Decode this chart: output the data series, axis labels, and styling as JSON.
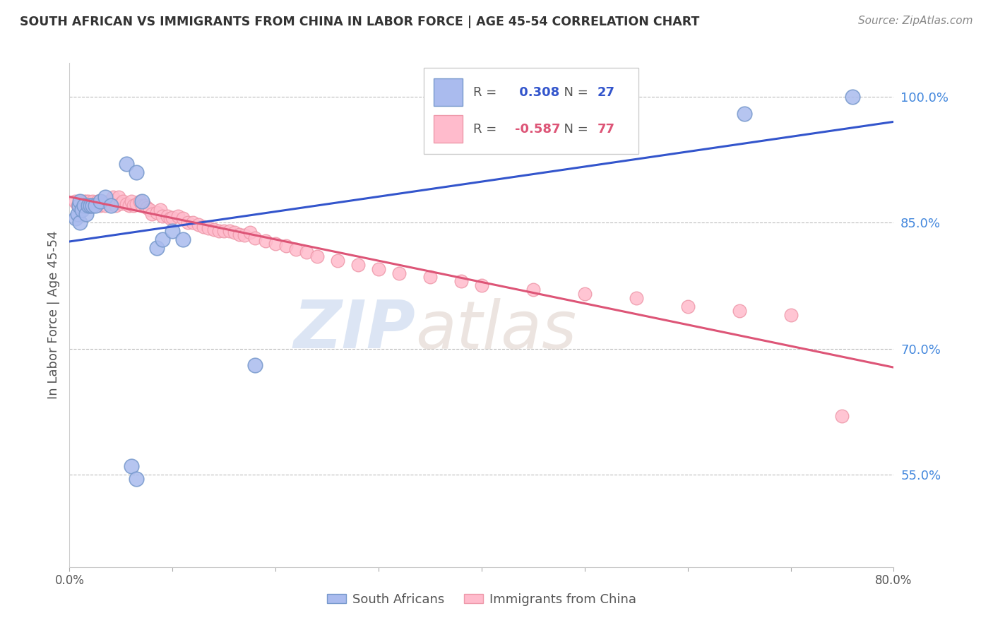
{
  "title": "SOUTH AFRICAN VS IMMIGRANTS FROM CHINA IN LABOR FORCE | AGE 45-54 CORRELATION CHART",
  "source": "Source: ZipAtlas.com",
  "ylabel": "In Labor Force | Age 45-54",
  "xlim": [
    0.0,
    0.8
  ],
  "ylim": [
    0.44,
    1.04
  ],
  "xticks": [
    0.0,
    0.1,
    0.2,
    0.3,
    0.4,
    0.5,
    0.6,
    0.7,
    0.8
  ],
  "xticklabels": [
    "0.0%",
    "",
    "",
    "",
    "",
    "",
    "",
    "",
    "80.0%"
  ],
  "yticks_right": [
    0.55,
    0.7,
    0.85,
    1.0
  ],
  "ytick_labels_right": [
    "55.0%",
    "70.0%",
    "85.0%",
    "100.0%"
  ],
  "blue_R": 0.308,
  "blue_N": 27,
  "pink_R": -0.587,
  "pink_N": 77,
  "blue_color": "#aabbee",
  "blue_edge": "#7799cc",
  "pink_color": "#ffbbcc",
  "pink_edge": "#ee99aa",
  "blue_line_color": "#3355cc",
  "pink_line_color": "#dd5577",
  "legend_label_blue": "South Africans",
  "legend_label_pink": "Immigrants from China",
  "watermark_zip": "ZIP",
  "watermark_atlas": "atlas",
  "blue_x": [
    0.006,
    0.008,
    0.009,
    0.01,
    0.01,
    0.012,
    0.014,
    0.016,
    0.018,
    0.02,
    0.022,
    0.025,
    0.03,
    0.035,
    0.04,
    0.055,
    0.065,
    0.07,
    0.085,
    0.09,
    0.1,
    0.11,
    0.06,
    0.065,
    0.18,
    0.655,
    0.76
  ],
  "blue_y": [
    0.855,
    0.86,
    0.87,
    0.85,
    0.875,
    0.865,
    0.87,
    0.86,
    0.87,
    0.87,
    0.87,
    0.87,
    0.875,
    0.88,
    0.87,
    0.92,
    0.91,
    0.875,
    0.82,
    0.83,
    0.84,
    0.83,
    0.56,
    0.545,
    0.68,
    0.98,
    1.0
  ],
  "pink_x": [
    0.005,
    0.008,
    0.01,
    0.012,
    0.014,
    0.015,
    0.016,
    0.018,
    0.02,
    0.022,
    0.024,
    0.025,
    0.027,
    0.03,
    0.03,
    0.032,
    0.035,
    0.038,
    0.04,
    0.042,
    0.045,
    0.048,
    0.05,
    0.052,
    0.055,
    0.058,
    0.06,
    0.062,
    0.065,
    0.068,
    0.07,
    0.073,
    0.075,
    0.078,
    0.08,
    0.085,
    0.088,
    0.09,
    0.095,
    0.098,
    0.1,
    0.105,
    0.11,
    0.115,
    0.12,
    0.125,
    0.13,
    0.135,
    0.14,
    0.145,
    0.15,
    0.155,
    0.16,
    0.165,
    0.17,
    0.175,
    0.18,
    0.19,
    0.2,
    0.21,
    0.22,
    0.23,
    0.24,
    0.26,
    0.28,
    0.3,
    0.32,
    0.35,
    0.38,
    0.4,
    0.45,
    0.5,
    0.55,
    0.6,
    0.65,
    0.7,
    0.75
  ],
  "pink_y": [
    0.875,
    0.87,
    0.875,
    0.87,
    0.875,
    0.87,
    0.875,
    0.875,
    0.87,
    0.875,
    0.87,
    0.872,
    0.875,
    0.872,
    0.87,
    0.875,
    0.87,
    0.875,
    0.872,
    0.88,
    0.87,
    0.88,
    0.873,
    0.875,
    0.872,
    0.87,
    0.875,
    0.87,
    0.872,
    0.875,
    0.87,
    0.87,
    0.868,
    0.865,
    0.86,
    0.862,
    0.865,
    0.858,
    0.858,
    0.855,
    0.856,
    0.858,
    0.855,
    0.85,
    0.85,
    0.848,
    0.845,
    0.843,
    0.842,
    0.84,
    0.84,
    0.84,
    0.838,
    0.836,
    0.835,
    0.838,
    0.832,
    0.828,
    0.825,
    0.822,
    0.818,
    0.815,
    0.81,
    0.805,
    0.8,
    0.795,
    0.79,
    0.785,
    0.78,
    0.775,
    0.77,
    0.765,
    0.76,
    0.75,
    0.745,
    0.74,
    0.62
  ]
}
